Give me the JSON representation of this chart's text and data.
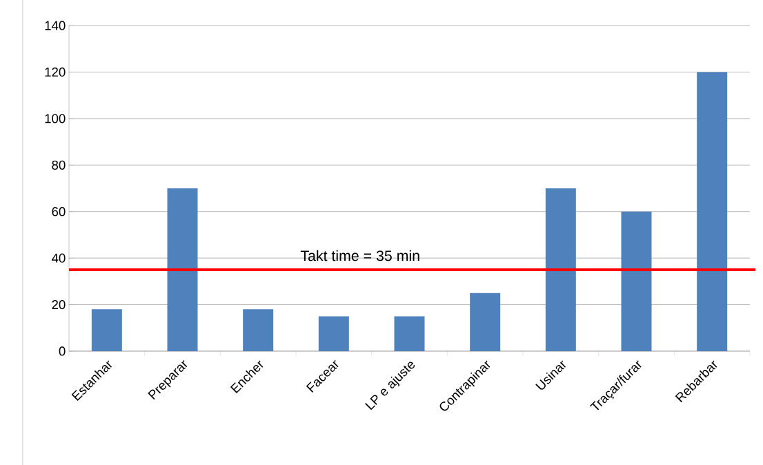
{
  "chart_data": {
    "type": "bar",
    "categories": [
      "Estanhar",
      "Preparar",
      "Encher",
      "Facear",
      "LP e ajuste",
      "Contrapinar",
      "Usinar",
      "Traçar/furar",
      "Rebarbar"
    ],
    "values": [
      18,
      70,
      18,
      15,
      15,
      25,
      70,
      60,
      120
    ],
    "color": "#4f81bd",
    "ylim": [
      0,
      140
    ],
    "yticks": [
      0,
      20,
      40,
      60,
      80,
      100,
      120,
      140
    ],
    "grid": "y",
    "ref_lines": [
      {
        "axis": "y",
        "value": 35,
        "label": "Takt time = 35 min",
        "color": "#ff0000"
      }
    ]
  }
}
